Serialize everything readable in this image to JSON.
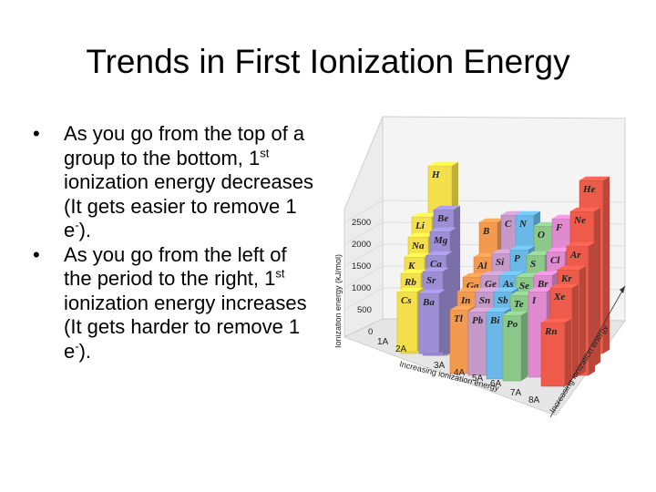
{
  "slide": {
    "title": "Trends in First Ionization Energy",
    "bullets": [
      {
        "text": "As you go from the top of a group to the bottom, 1",
        "sup": "st",
        "tail": " ionization energy decreases (It gets easier to remove 1 e",
        "tail_sup": "-",
        "end": ")."
      },
      {
        "text": "As you go from the left of the period to the right, 1",
        "sup": "st",
        "tail": " ionization energy increases (It gets harder to remove 1 e",
        "tail_sup": "-",
        "end": ")."
      }
    ]
  },
  "figure": {
    "y_axis_label": "Ionization energy (kJ/mol)",
    "y_ticks": [
      "2500",
      "2000",
      "1500",
      "1000",
      "500",
      "0"
    ],
    "x_axis_label": "Increasing ionization energy",
    "diag_axis_label": "Increasing ionization energy",
    "groups": [
      "1A",
      "2A",
      "3A",
      "4A",
      "5A",
      "6A",
      "7A",
      "8A"
    ],
    "elements": [
      "H",
      "He",
      "Li",
      "Be",
      "B",
      "C",
      "N",
      "O",
      "F",
      "Ne",
      "Na",
      "Mg",
      "Al",
      "Si",
      "P",
      "S",
      "Cl",
      "Ar",
      "K",
      "Ca",
      "Ga",
      "Ge",
      "As",
      "Se",
      "Br",
      "Kr",
      "Rb",
      "Sr",
      "In",
      "Sn",
      "Sb",
      "Te",
      "I",
      "Xe",
      "Cs",
      "Ba",
      "Tl",
      "Pb",
      "Bi",
      "Po",
      "Rn"
    ],
    "colors": {
      "g1": "#f3e04a",
      "g2": "#9c8fd6",
      "g3": "#f29a50",
      "g4": "#c59ac9",
      "g5": "#6ab8e8",
      "g6": "#8bc88a",
      "g7": "#e08ad0",
      "g8": "#ef5b4a"
    }
  }
}
